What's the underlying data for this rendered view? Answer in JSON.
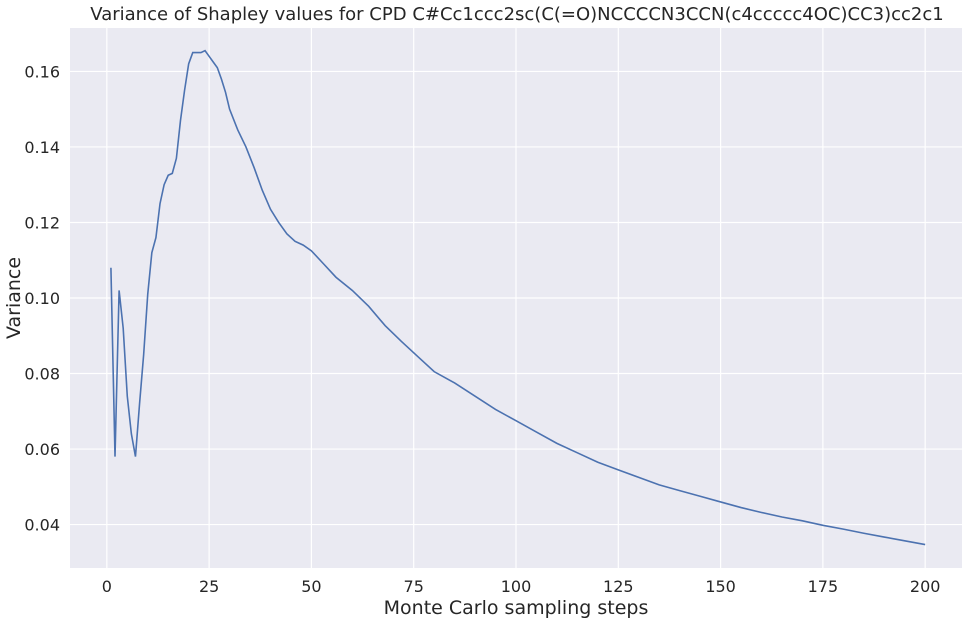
{
  "chart_data": {
    "type": "line",
    "title": "Variance of Shapley values for CPD C#Cc1ccc2sc(C(=O)NCCCCN3CCN(c4ccccc4OC)CC3)cc2c1",
    "xlabel": "Monte Carlo sampling steps",
    "ylabel": "Variance",
    "xlim": [
      -9,
      209
    ],
    "ylim": [
      0.0285,
      0.1715
    ],
    "xticks": [
      0,
      25,
      50,
      75,
      100,
      125,
      150,
      175,
      200
    ],
    "yticks": [
      0.04,
      0.06,
      0.08,
      0.1,
      0.12,
      0.14,
      0.16
    ],
    "ytick_labels": [
      "0.04",
      "0.06",
      "0.08",
      "0.10",
      "0.12",
      "0.14",
      "0.16"
    ],
    "grid": true,
    "colors": {
      "background": "#EAEAF2",
      "grid": "#FFFFFF",
      "line": "#4C72B0"
    },
    "series": [
      {
        "x": [
          1,
          2,
          3,
          4,
          5,
          6,
          7,
          8,
          9,
          10,
          11,
          12,
          13,
          14,
          15,
          16,
          17,
          18,
          19,
          20,
          21,
          22,
          23,
          24,
          25,
          26,
          27,
          28,
          29,
          30,
          32,
          34,
          36,
          38,
          40,
          42,
          44,
          46,
          48,
          50,
          53,
          56,
          60,
          64,
          68,
          72,
          76,
          80,
          85,
          90,
          95,
          100,
          105,
          110,
          115,
          120,
          125,
          130,
          135,
          140,
          145,
          150,
          155,
          160,
          165,
          170,
          175,
          180,
          185,
          190,
          195,
          200
        ],
        "y": [
          0.108,
          0.058,
          0.102,
          0.092,
          0.074,
          0.064,
          0.058,
          0.072,
          0.085,
          0.101,
          0.112,
          0.116,
          0.125,
          0.13,
          0.1325,
          0.133,
          0.137,
          0.147,
          0.155,
          0.162,
          0.165,
          0.165,
          0.165,
          0.1655,
          0.164,
          0.1625,
          0.161,
          0.158,
          0.1545,
          0.15,
          0.1445,
          0.14,
          0.1345,
          0.1285,
          0.1235,
          0.12,
          0.117,
          0.115,
          0.114,
          0.1125,
          0.109,
          0.1055,
          0.102,
          0.0978,
          0.0927,
          0.0885,
          0.0845,
          0.0805,
          0.0775,
          0.074,
          0.0705,
          0.0675,
          0.0645,
          0.0615,
          0.059,
          0.0565,
          0.0545,
          0.0525,
          0.0505,
          0.049,
          0.0475,
          0.046,
          0.0445,
          0.0432,
          0.042,
          0.041,
          0.0398,
          0.0388,
          0.0377,
          0.0367,
          0.0357,
          0.0347
        ]
      }
    ]
  }
}
